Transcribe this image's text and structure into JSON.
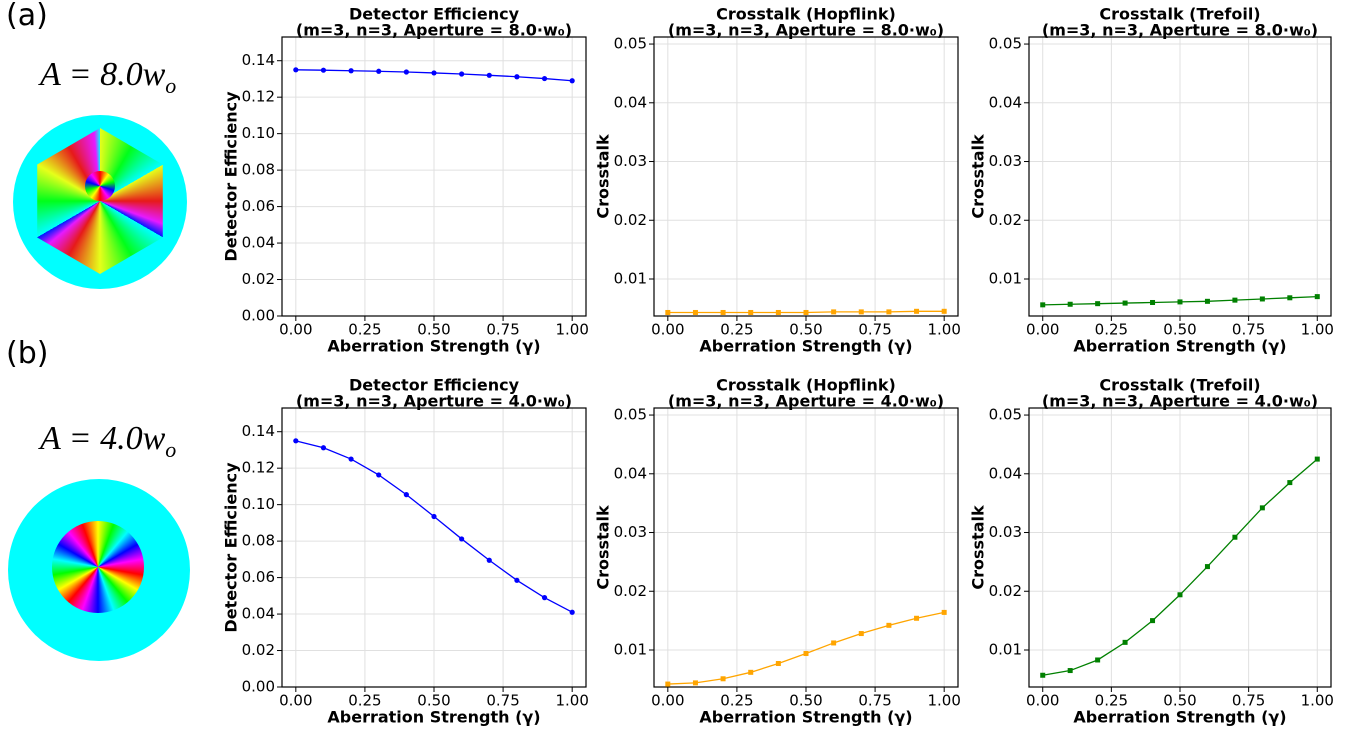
{
  "panels": [
    {
      "label": "(a)",
      "aperture_label": {
        "main": "A = 8.0w",
        "sub": "o"
      }
    },
    {
      "label": "(b)",
      "aperture_label": {
        "main": "A = 4.0w",
        "sub": "o"
      }
    }
  ],
  "chart_data": [
    {
      "type": "line",
      "title": "Detector Efficiency",
      "subtitle": "(m=3, n=3, Aperture = 8.0·w₀)",
      "x_label": "Aberration Strength (γ)",
      "y_label": "Detector Efficiency",
      "x": [
        0,
        0.1,
        0.2,
        0.3,
        0.4,
        0.5,
        0.6,
        0.7,
        0.8,
        0.9,
        1
      ],
      "series": [
        {
          "name": "Detector Efficiency",
          "color": "#0000ff",
          "marker": "o",
          "values": [
            0.135,
            0.1348,
            0.1345,
            0.1342,
            0.1338,
            0.1333,
            0.1327,
            0.132,
            0.1312,
            0.1302,
            0.129
          ]
        }
      ],
      "xlim": [
        -0.05,
        1.05
      ],
      "ylim": [
        0,
        0.153
      ],
      "xticks": [
        {
          "value": 0,
          "label": "0.00"
        },
        0.25,
        {
          "value": 0.5,
          "label": "0.50"
        },
        0.75,
        {
          "value": 1,
          "label": "1.00"
        }
      ],
      "yticks": [
        {
          "value": 0,
          "label": "0.00"
        },
        0.02,
        0.04,
        0.06,
        0.08,
        {
          "value": 0.1,
          "label": "0.10"
        },
        0.12,
        0.14
      ],
      "grid": true
    },
    {
      "type": "line",
      "title": "Crosstalk (Hopflink)",
      "subtitle": "(m=3, n=3, Aperture = 8.0·w₀)",
      "x_label": "Aberration Strength (γ)",
      "y_label": "Crosstalk",
      "x": [
        0,
        0.1,
        0.2,
        0.3,
        0.4,
        0.5,
        0.6,
        0.7,
        0.8,
        0.9,
        1
      ],
      "series": [
        {
          "name": "Crosstalk (Hopflink)",
          "color": "#ffa500",
          "marker": "s",
          "values": [
            0.0043,
            0.0043,
            0.0043,
            0.0043,
            0.0043,
            0.0043,
            0.0044,
            0.0044,
            0.0044,
            0.0045,
            0.0045
          ]
        }
      ],
      "xlim": [
        -0.05,
        1.05
      ],
      "ylim": [
        0.0037,
        0.0512
      ],
      "xticks": [
        {
          "value": 0,
          "label": "0.00"
        },
        0.25,
        {
          "value": 0.5,
          "label": "0.50"
        },
        0.75,
        {
          "value": 1,
          "label": "1.00"
        }
      ],
      "yticks": [
        0.01,
        0.02,
        0.03,
        0.04,
        0.05
      ],
      "grid": true
    },
    {
      "type": "line",
      "title": "Crosstalk (Trefoil)",
      "subtitle": "(m=3, n=3, Aperture = 8.0·w₀)",
      "x_label": "Aberration Strength (γ)",
      "y_label": "Crosstalk",
      "x": [
        0,
        0.1,
        0.2,
        0.3,
        0.4,
        0.5,
        0.6,
        0.7,
        0.8,
        0.9,
        1
      ],
      "series": [
        {
          "name": "Crosstalk (Trefoil)",
          "color": "#008000",
          "marker": "s",
          "values": [
            0.0056,
            0.0057,
            0.0058,
            0.0059,
            0.006,
            0.0061,
            0.0062,
            0.0064,
            0.0066,
            0.0068,
            0.007
          ]
        }
      ],
      "xlim": [
        -0.05,
        1.05
      ],
      "ylim": [
        0.0037,
        0.0512
      ],
      "xticks": [
        {
          "value": 0,
          "label": "0.00"
        },
        0.25,
        {
          "value": 0.5,
          "label": "0.50"
        },
        0.75,
        {
          "value": 1,
          "label": "1.00"
        }
      ],
      "yticks": [
        0.01,
        0.02,
        0.03,
        0.04,
        0.05
      ],
      "grid": true
    },
    {
      "type": "line",
      "title": "Detector Efficiency",
      "subtitle": "(m=3, n=3, Aperture = 4.0·w₀)",
      "x_label": "Aberration Strength (γ)",
      "y_label": "Detector Efficiency",
      "x": [
        0,
        0.1,
        0.2,
        0.3,
        0.4,
        0.5,
        0.6,
        0.7,
        0.8,
        0.9,
        1
      ],
      "series": [
        {
          "name": "Detector Efficiency",
          "color": "#0000ff",
          "marker": "o",
          "values": [
            0.135,
            0.1312,
            0.125,
            0.1163,
            0.1055,
            0.0935,
            0.0812,
            0.0695,
            0.0585,
            0.049,
            0.041
          ]
        }
      ],
      "xlim": [
        -0.05,
        1.05
      ],
      "ylim": [
        0,
        0.153
      ],
      "xticks": [
        {
          "value": 0,
          "label": "0.00"
        },
        0.25,
        {
          "value": 0.5,
          "label": "0.50"
        },
        0.75,
        {
          "value": 1,
          "label": "1.00"
        }
      ],
      "yticks": [
        {
          "value": 0,
          "label": "0.00"
        },
        0.02,
        0.04,
        0.06,
        0.08,
        {
          "value": 0.1,
          "label": "0.10"
        },
        0.12,
        0.14
      ],
      "grid": true
    },
    {
      "type": "line",
      "title": "Crosstalk (Hopflink)",
      "subtitle": "(m=3, n=3, Aperture = 4.0·w₀)",
      "x_label": "Aberration Strength (γ)",
      "y_label": "Crosstalk",
      "x": [
        0,
        0.1,
        0.2,
        0.3,
        0.4,
        0.5,
        0.6,
        0.7,
        0.8,
        0.9,
        1
      ],
      "series": [
        {
          "name": "Crosstalk (Hopflink)",
          "color": "#ffa500",
          "marker": "s",
          "values": [
            0.0042,
            0.0044,
            0.0051,
            0.0062,
            0.0077,
            0.0094,
            0.0112,
            0.0128,
            0.0142,
            0.0154,
            0.0164
          ]
        }
      ],
      "xlim": [
        -0.05,
        1.05
      ],
      "ylim": [
        0.0037,
        0.0512
      ],
      "xticks": [
        {
          "value": 0,
          "label": "0.00"
        },
        0.25,
        {
          "value": 0.5,
          "label": "0.50"
        },
        0.75,
        {
          "value": 1,
          "label": "1.00"
        }
      ],
      "yticks": [
        0.01,
        0.02,
        0.03,
        0.04,
        0.05
      ],
      "grid": true
    },
    {
      "type": "line",
      "title": "Crosstalk (Trefoil)",
      "subtitle": "(m=3, n=3, Aperture = 4.0·w₀)",
      "x_label": "Aberration Strength (γ)",
      "y_label": "Crosstalk",
      "x": [
        0,
        0.1,
        0.2,
        0.3,
        0.4,
        0.5,
        0.6,
        0.7,
        0.8,
        0.9,
        1
      ],
      "series": [
        {
          "name": "Crosstalk (Trefoil)",
          "color": "#008000",
          "marker": "s",
          "values": [
            0.0057,
            0.0065,
            0.0083,
            0.0113,
            0.015,
            0.0194,
            0.0242,
            0.0292,
            0.0342,
            0.0385,
            0.0425
          ]
        }
      ],
      "xlim": [
        -0.05,
        1.05
      ],
      "ylim": [
        0.0037,
        0.0512
      ],
      "xticks": [
        {
          "value": 0,
          "label": "0.00"
        },
        0.25,
        {
          "value": 0.5,
          "label": "0.50"
        },
        0.75,
        {
          "value": 1,
          "label": "1.00"
        }
      ],
      "yticks": [
        0.01,
        0.02,
        0.03,
        0.04,
        0.05
      ],
      "grid": true
    }
  ]
}
